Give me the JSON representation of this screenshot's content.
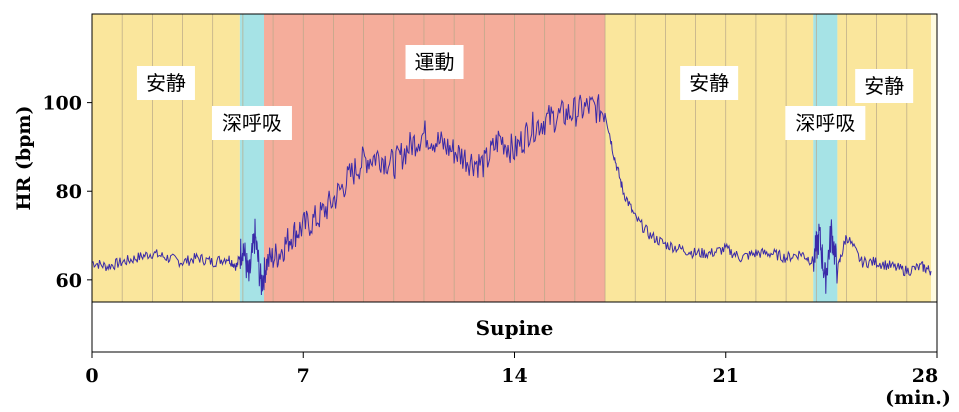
{
  "chart_data": {
    "type": "line",
    "xlabel": "(min.)",
    "ylabel": "HR (bpm)",
    "xlim": [
      0,
      28
    ],
    "ylim": [
      55,
      120
    ],
    "x_ticks": [
      0,
      7,
      14,
      21,
      28
    ],
    "y_ticks": [
      60,
      80,
      100
    ],
    "grid": "vertical, every 1 min",
    "posture_label": "Supine",
    "phases": [
      {
        "label": "安静",
        "start": 0,
        "end": 4.9,
        "color": "#fae69c"
      },
      {
        "label": "深呼吸",
        "start": 4.9,
        "end": 5.7,
        "color": "#a6e3e6"
      },
      {
        "label": "運動",
        "start": 5.7,
        "end": 17.0,
        "color": "#f5ad9b"
      },
      {
        "label": "安静",
        "start": 17.0,
        "end": 23.9,
        "color": "#fae69c"
      },
      {
        "label": "深呼吸",
        "start": 23.9,
        "end": 24.7,
        "color": "#a6e3e6"
      },
      {
        "label": "安静",
        "start": 24.7,
        "end": 27.8,
        "color": "#fae69c"
      }
    ],
    "series": [
      {
        "color": "#3a2aa8",
        "x": [
          0,
          0.5,
          1,
          1.5,
          2,
          2.5,
          3,
          3.5,
          4,
          4.5,
          4.8,
          5.0,
          5.2,
          5.4,
          5.6,
          5.8,
          6.2,
          6.6,
          7.0,
          7.5,
          8.0,
          8.5,
          9.0,
          9.5,
          10.0,
          10.5,
          11.0,
          11.5,
          12.0,
          12.5,
          13.0,
          13.5,
          14.0,
          14.5,
          15.0,
          15.5,
          16.0,
          16.5,
          17.0,
          17.3,
          17.6,
          18.0,
          18.5,
          19.0,
          19.5,
          20.0,
          20.5,
          21.0,
          21.5,
          22.0,
          22.5,
          23.0,
          23.5,
          23.9,
          24.1,
          24.3,
          24.5,
          24.7,
          25.0,
          25.5,
          26.0,
          26.5,
          27.0,
          27.5,
          27.8
        ],
        "y": [
          64,
          63,
          64,
          65,
          66,
          65,
          64,
          65,
          64,
          65,
          63,
          68,
          60,
          70,
          59,
          64,
          66,
          70,
          72,
          74,
          78,
          83,
          87,
          88,
          86,
          90,
          93,
          91,
          89,
          87,
          86,
          92,
          89,
          94,
          96,
          97,
          98,
          99,
          98,
          88,
          80,
          74,
          70,
          68,
          67,
          66,
          66,
          67,
          65,
          66,
          66,
          65,
          66,
          64,
          70,
          60,
          71,
          62,
          70,
          64,
          64,
          63,
          62,
          63,
          62
        ]
      }
    ]
  }
}
